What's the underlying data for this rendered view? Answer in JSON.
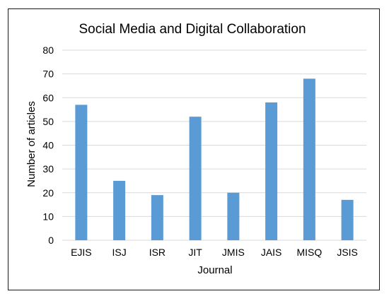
{
  "chart_data": {
    "type": "bar",
    "title": "Social Media and Digital Collaboration",
    "xlabel": "Journal",
    "ylabel": "Number of articles",
    "categories": [
      "EJIS",
      "ISJ",
      "ISR",
      "JIT",
      "JMIS",
      "JAIS",
      "MISQ",
      "JSIS"
    ],
    "values": [
      57,
      25,
      19,
      52,
      20,
      58,
      68,
      17
    ],
    "ylim": [
      0,
      80
    ],
    "yticks": [
      0,
      10,
      20,
      30,
      40,
      50,
      60,
      70,
      80
    ],
    "grid": true,
    "bar_color": "#5b9bd5"
  }
}
